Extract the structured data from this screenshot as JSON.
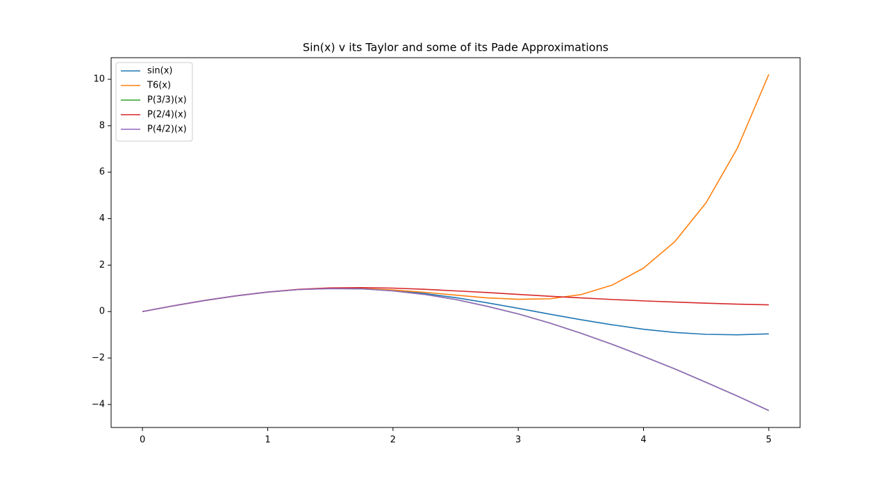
{
  "chart_data": {
    "type": "line",
    "title": "Sin(x) v its Taylor and some of its Pade Approximations",
    "x": [
      0,
      0.25,
      0.5,
      0.75,
      1,
      1.25,
      1.5,
      1.75,
      2,
      2.25,
      2.5,
      2.75,
      3,
      3.25,
      3.5,
      3.75,
      4,
      4.25,
      4.5,
      4.75,
      5
    ],
    "series": [
      {
        "name": "sin(x)",
        "color": "#1f77b4",
        "values": [
          0,
          0.25,
          0.48,
          0.68,
          0.84,
          0.95,
          1.0,
          0.98,
          0.91,
          0.78,
          0.6,
          0.38,
          0.14,
          -0.11,
          -0.35,
          -0.57,
          -0.76,
          -0.9,
          -0.98,
          -1.0,
          -0.96
        ]
      },
      {
        "name": "T6(x)",
        "color": "#ff7f0e",
        "values": [
          0,
          0.25,
          0.48,
          0.68,
          0.84,
          0.95,
          1.0,
          0.99,
          0.93,
          0.83,
          0.71,
          0.59,
          0.53,
          0.55,
          0.73,
          1.14,
          1.87,
          3.01,
          4.69,
          7.04,
          10.21
        ]
      },
      {
        "name": "P(3/3)(x)",
        "color": "#2ca02c",
        "values": [
          0,
          0.25,
          0.48,
          0.68,
          0.84,
          0.95,
          0.99,
          0.98,
          0.89,
          0.74,
          0.52,
          0.23,
          -0.1,
          -0.49,
          -0.93,
          -1.41,
          -1.93,
          -2.47,
          -3.05,
          -3.64,
          -4.26
        ]
      },
      {
        "name": "P(2/4)(x)",
        "color": "#d62728",
        "values": [
          0,
          0.25,
          0.48,
          0.68,
          0.84,
          0.96,
          1.02,
          1.03,
          1.01,
          0.96,
          0.89,
          0.82,
          0.74,
          0.66,
          0.59,
          0.52,
          0.46,
          0.41,
          0.36,
          0.32,
          0.29
        ]
      },
      {
        "name": "P(4/2)(x)",
        "color": "#9467bd",
        "values": [
          0,
          0.25,
          0.48,
          0.68,
          0.84,
          0.95,
          0.99,
          0.98,
          0.89,
          0.74,
          0.52,
          0.23,
          -0.1,
          -0.49,
          -0.93,
          -1.41,
          -1.93,
          -2.47,
          -3.05,
          -3.64,
          -4.26
        ]
      }
    ],
    "xlim": [
      -0.25,
      5.25
    ],
    "xticks": [
      0,
      1,
      2,
      3,
      4,
      5
    ],
    "ylim": [
      -4.99,
      10.93
    ],
    "yticks": [
      {
        "value": -4,
        "label": "−4"
      },
      {
        "value": -2,
        "label": "−2"
      },
      0,
      2,
      4,
      6,
      8,
      10
    ],
    "grid": false,
    "legend": "upper-left"
  }
}
